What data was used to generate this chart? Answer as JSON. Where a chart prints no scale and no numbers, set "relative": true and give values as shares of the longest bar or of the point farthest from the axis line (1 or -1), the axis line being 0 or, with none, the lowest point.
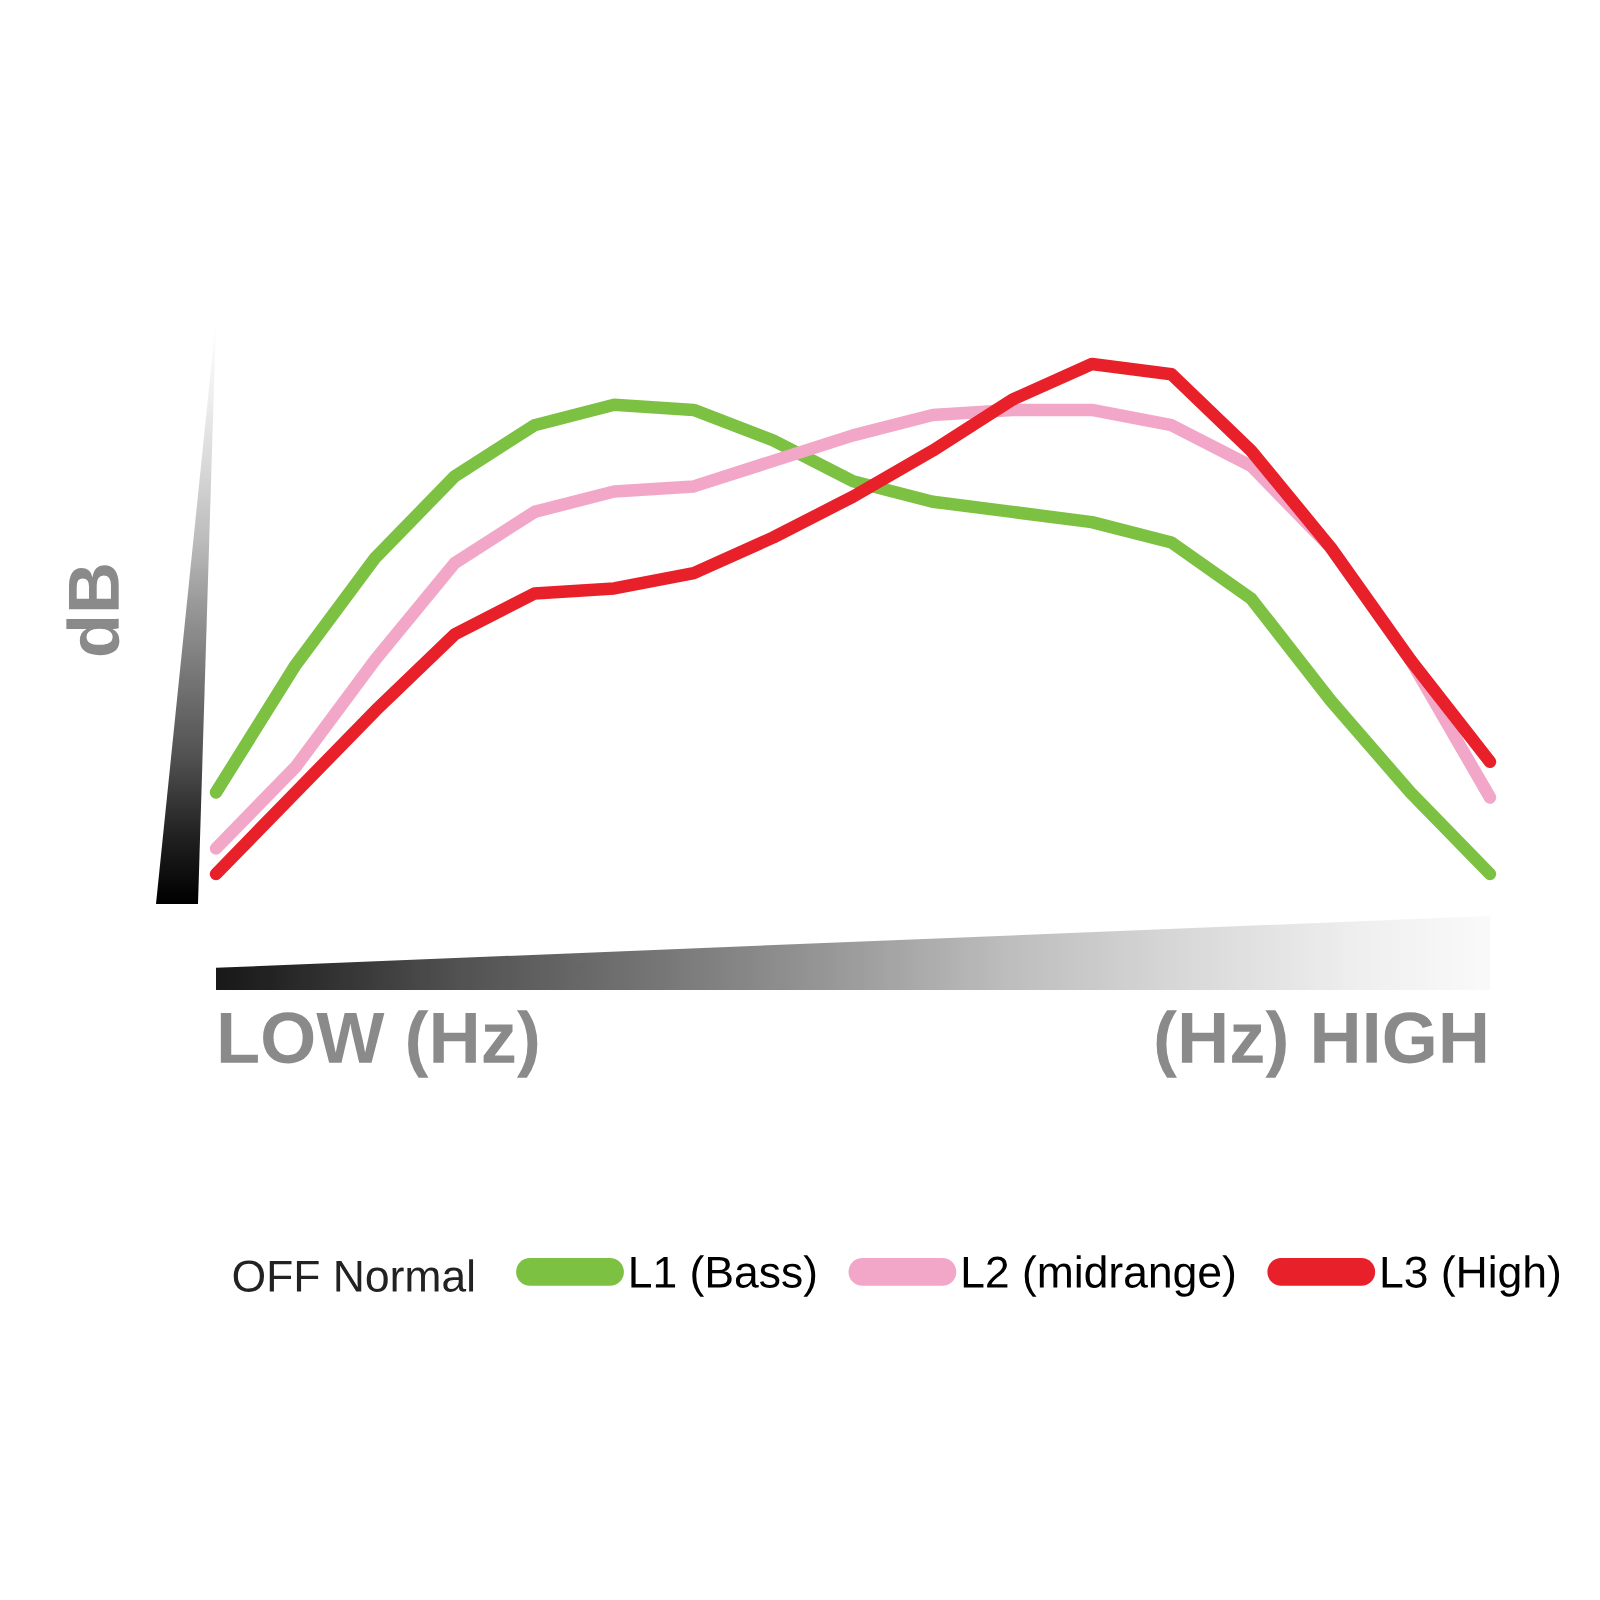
{
  "chart_data": {
    "type": "line",
    "relative": true,
    "ylabel": "dB",
    "xlabel": "LOW (Hz)",
    "annotations": [
      "(Hz) HIGH",
      "OFF Normal"
    ],
    "categories": [
      null,
      null,
      null,
      null,
      null,
      null,
      null,
      null,
      null,
      null,
      null,
      null,
      null,
      null,
      null,
      null,
      null
    ],
    "series": [
      {
        "name": "L1 (Bass)",
        "color": "#7dc142",
        "values": [
          0.16,
          0.41,
          0.62,
          0.78,
          0.88,
          0.92,
          0.91,
          0.85,
          0.77,
          0.73,
          0.71,
          0.69,
          0.65,
          0.54,
          0.34,
          0.16,
          0.0
        ]
      },
      {
        "name": "L2 (midrange)",
        "color": "#f2a7c9",
        "values": [
          0.05,
          0.21,
          0.42,
          0.61,
          0.71,
          0.75,
          0.76,
          0.81,
          0.86,
          0.9,
          0.91,
          0.91,
          0.88,
          0.8,
          0.64,
          0.42,
          0.15
        ]
      },
      {
        "name": "L3 (High)",
        "color": "#e8202a",
        "values": [
          0.0,
          0.16,
          0.32,
          0.47,
          0.55,
          0.56,
          0.59,
          0.66,
          0.74,
          0.83,
          0.93,
          1.0,
          0.98,
          0.83,
          0.64,
          0.42,
          0.22
        ]
      }
    ],
    "legend": "bottom",
    "grid": false,
    "marker": "none",
    "line_style": "solid"
  }
}
